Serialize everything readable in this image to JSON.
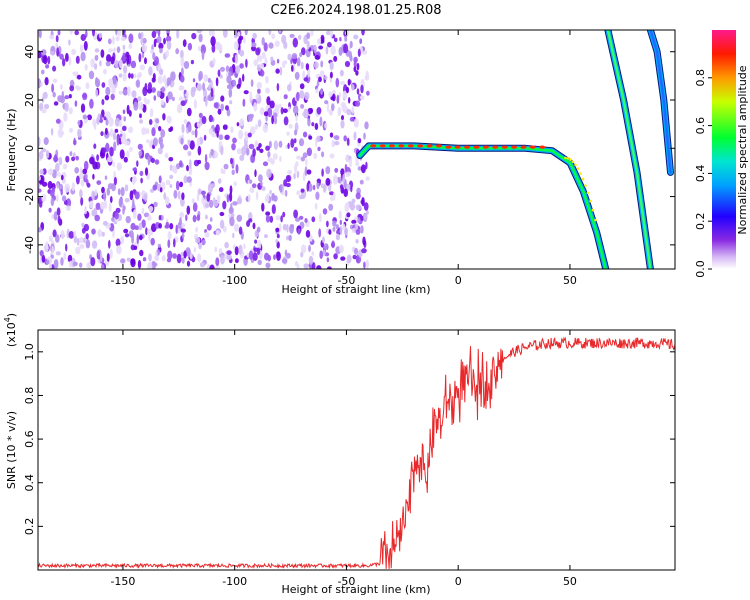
{
  "title": "C2E6.2024.198.01.25.R08",
  "chart_data": [
    {
      "type": "heatmap",
      "title": "C2E6.2024.198.01.25.R08",
      "xlabel": "Height of straight line (km)",
      "ylabel": "Frequency (Hz)",
      "xlim": [
        -188,
        97
      ],
      "ylim": [
        -50,
        49
      ],
      "xticks": [
        -150,
        -100,
        -50,
        0,
        50
      ],
      "yticks": [
        -40,
        -20,
        0,
        20,
        40
      ],
      "colorbar": {
        "label": "Normalized spectral amplitude",
        "range": [
          0,
          1
        ],
        "ticks": [
          0.0,
          0.2,
          0.4,
          0.6,
          0.8
        ],
        "colormap": [
          "#ffffff",
          "#8a2be2",
          "#0000ff",
          "#00bfff",
          "#00ff00",
          "#ffff00",
          "#ff0000",
          "#ff1493"
        ]
      },
      "features": {
        "noise_region_x": [
          -188,
          -43
        ],
        "carrier_line": [
          [
            -44,
            -3
          ],
          [
            -40,
            1
          ],
          [
            -20,
            1
          ],
          [
            0,
            0
          ],
          [
            30,
            0
          ],
          [
            42,
            -1
          ],
          [
            50,
            -6
          ],
          [
            56,
            -18
          ],
          [
            62,
            -35
          ],
          [
            66,
            -50
          ]
        ],
        "upper_branch_1": [
          [
            67,
            49
          ],
          [
            74,
            20
          ],
          [
            80,
            -10
          ],
          [
            86,
            -50
          ]
        ],
        "upper_branch_2": [
          [
            86,
            49
          ],
          [
            89,
            40
          ],
          [
            92,
            20
          ],
          [
            95,
            -10
          ]
        ]
      }
    },
    {
      "type": "line",
      "xlabel": "Height of straight line (km)",
      "ylabel": "SNR (10 * v/v)",
      "y_multiplier": "(x10",
      "y_multiplier_exp": "4",
      "xlim": [
        -188,
        97
      ],
      "ylim": [
        0,
        1.1
      ],
      "xticks": [
        -150,
        -100,
        -50,
        0,
        50
      ],
      "yticks": [
        0.2,
        0.4,
        0.6,
        0.8,
        1.0
      ],
      "series_color": "#e8292b",
      "x": [
        -188,
        -170,
        -150,
        -130,
        -110,
        -90,
        -70,
        -50,
        -40,
        -35,
        -30,
        -25,
        -22,
        -20,
        -18,
        -15,
        -12,
        -10,
        -8,
        -5,
        -3,
        0,
        3,
        5,
        8,
        10,
        12,
        15,
        18,
        20,
        25,
        30,
        35,
        40,
        45,
        50,
        55,
        60,
        65,
        70,
        75,
        80,
        85,
        90,
        97
      ],
      "values": [
        0.02,
        0.02,
        0.02,
        0.02,
        0.02,
        0.02,
        0.02,
        0.02,
        0.02,
        0.03,
        0.08,
        0.18,
        0.3,
        0.45,
        0.55,
        0.42,
        0.58,
        0.7,
        0.65,
        0.78,
        0.75,
        0.82,
        0.85,
        0.88,
        0.8,
        0.9,
        0.85,
        0.9,
        0.95,
        0.97,
        1.0,
        1.02,
        1.03,
        1.04,
        1.04,
        1.04,
        1.04,
        1.04,
        1.04,
        1.04,
        1.04,
        1.04,
        1.04,
        1.04,
        1.03
      ]
    }
  ]
}
